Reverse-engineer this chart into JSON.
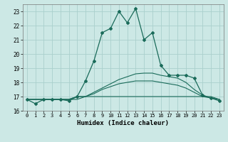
{
  "xlabel": "Humidex (Indice chaleur)",
  "bg_color": "#cce8e5",
  "grid_color": "#aad0cc",
  "line_color": "#1a6b5a",
  "x": [
    0,
    1,
    2,
    3,
    4,
    5,
    6,
    7,
    8,
    9,
    10,
    11,
    12,
    13,
    14,
    15,
    16,
    17,
    18,
    19,
    20,
    21,
    22,
    23
  ],
  "line_main": [
    16.8,
    16.5,
    16.8,
    16.8,
    16.8,
    16.7,
    17.0,
    18.1,
    19.5,
    21.5,
    21.8,
    23.0,
    22.2,
    23.2,
    21.0,
    21.5,
    19.2,
    18.5,
    18.5,
    18.5,
    18.3,
    17.1,
    16.9,
    16.7
  ],
  "line_flat": [
    16.8,
    16.8,
    16.8,
    16.8,
    16.8,
    16.8,
    16.8,
    17.0,
    17.0,
    17.0,
    17.0,
    17.0,
    17.0,
    17.0,
    17.0,
    17.0,
    17.0,
    17.0,
    17.0,
    17.0,
    17.0,
    17.0,
    17.0,
    16.8
  ],
  "line_mid": [
    16.8,
    16.8,
    16.8,
    16.8,
    16.8,
    16.8,
    17.0,
    17.0,
    17.2,
    17.5,
    17.7,
    17.9,
    18.0,
    18.1,
    18.1,
    18.1,
    18.0,
    17.9,
    17.8,
    17.6,
    17.3,
    17.0,
    16.9,
    16.8
  ],
  "line_upper": [
    16.8,
    16.8,
    16.8,
    16.8,
    16.8,
    16.8,
    17.0,
    17.0,
    17.3,
    17.6,
    17.9,
    18.2,
    18.4,
    18.6,
    18.65,
    18.65,
    18.5,
    18.4,
    18.3,
    18.0,
    17.5,
    17.1,
    16.9,
    16.8
  ],
  "ylim": [
    16,
    23.5
  ],
  "yticks": [
    16,
    17,
    18,
    19,
    20,
    21,
    22,
    23
  ],
  "xticks": [
    0,
    1,
    2,
    3,
    4,
    5,
    6,
    7,
    8,
    9,
    10,
    11,
    12,
    13,
    14,
    15,
    16,
    17,
    18,
    19,
    20,
    21,
    22,
    23
  ]
}
